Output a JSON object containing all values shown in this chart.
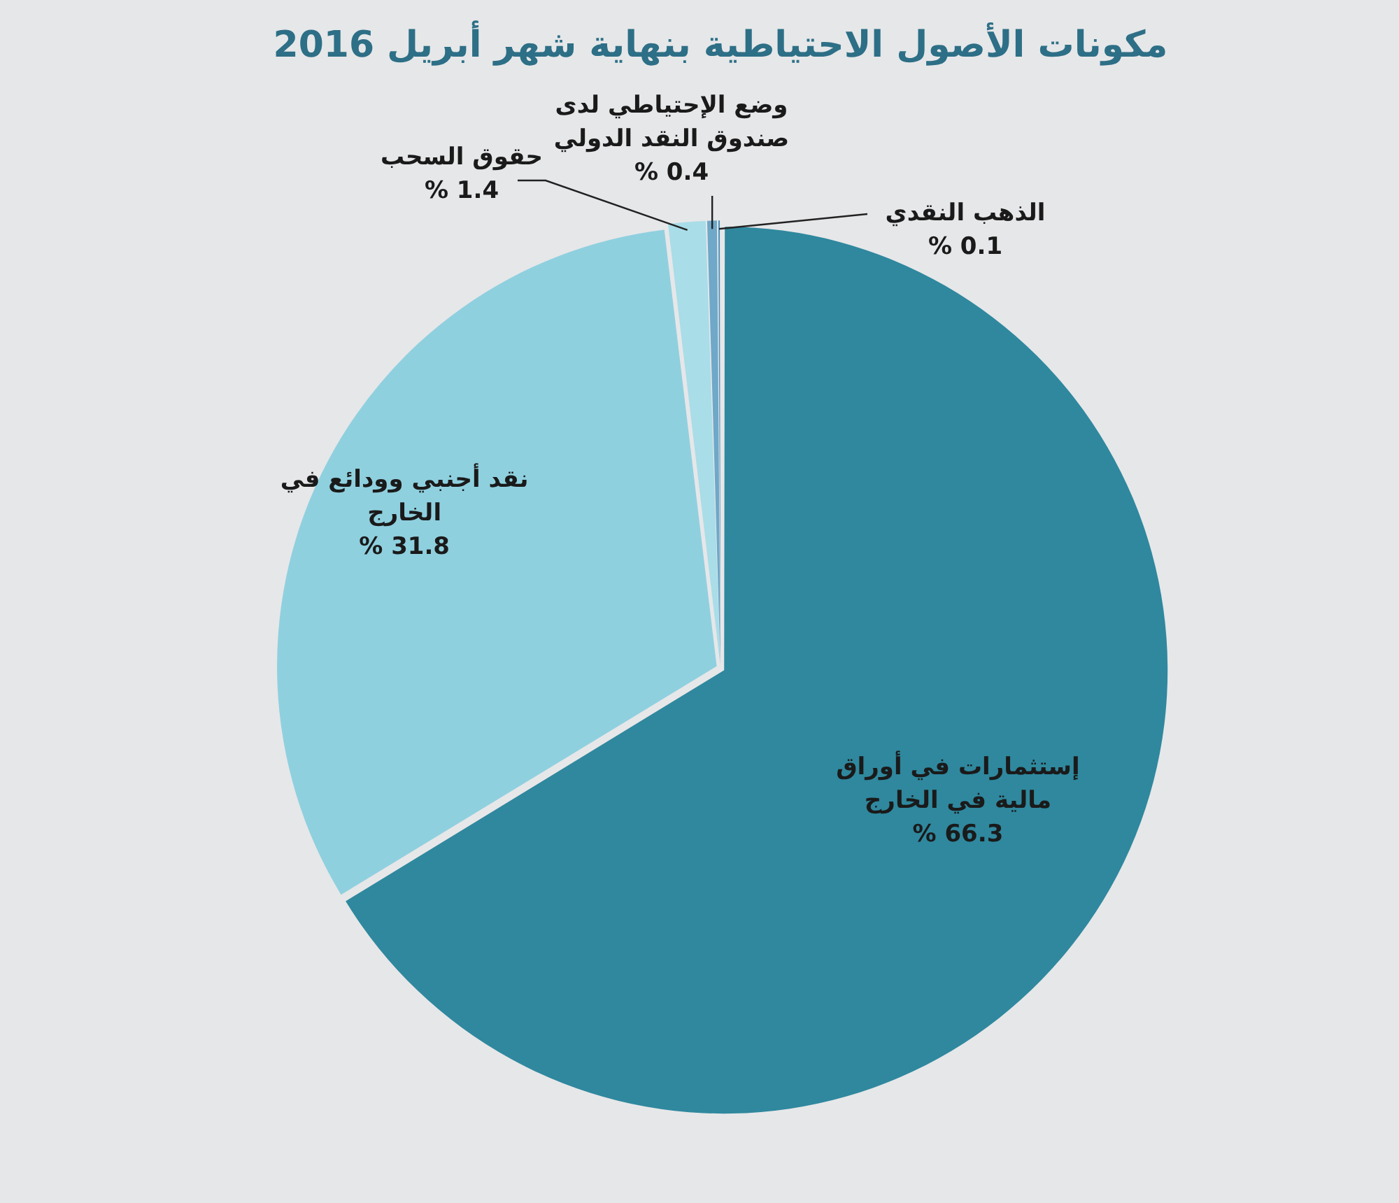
{
  "chart_data": {
    "type": "pie",
    "title": "مكونات الأصول الاحتياطية بنهاية شهر أبريل 2016",
    "categories": [
      "إستثمارات في أوراق مالية في الخارج",
      "نقد أجنبي وودائع في الخارج",
      "حقوق السحب",
      "وضع الإحتياطي لدى صندوق النقد الدولي",
      "الذهب النقدي"
    ],
    "values": [
      66.3,
      31.8,
      1.4,
      0.4,
      0.1
    ],
    "value_labels": [
      "66.3 %",
      "31.8 %",
      "1.4 %",
      "0.4 %",
      "0.1 %"
    ],
    "colors": [
      "#2f889e",
      "#8fd0df",
      "#a9dde8",
      "#6fa8c8",
      "#4f8fb6"
    ]
  }
}
